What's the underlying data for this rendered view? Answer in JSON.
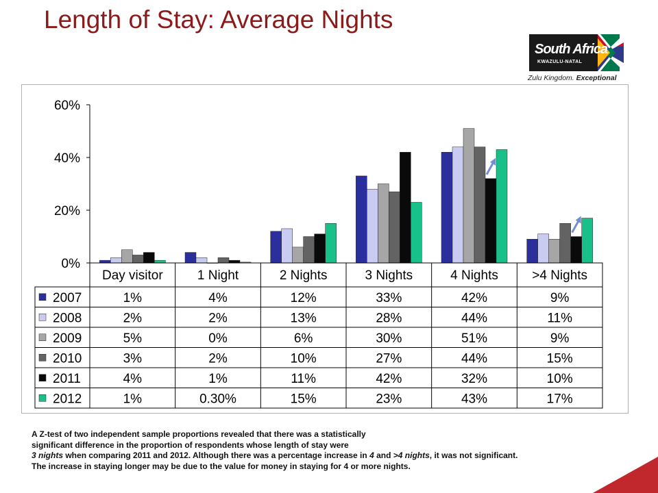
{
  "slide": {
    "title": "Length of Stay: Average Nights"
  },
  "logo": {
    "name": "South Africa",
    "region": "KWAZULU-NATAL",
    "tagline_a": "Zulu Kingdom. ",
    "tagline_b": "Exceptional"
  },
  "chart_data": {
    "type": "bar",
    "categories": [
      "Day visitor",
      "1 Night",
      "2 Nights",
      "3 Nights",
      "4 Nights",
      ">4 Nights"
    ],
    "series": [
      {
        "name": "2007",
        "color": "#2b2f9e",
        "values": [
          1,
          4,
          12,
          33,
          42,
          9
        ],
        "labels": [
          "1%",
          "4%",
          "12%",
          "33%",
          "42%",
          "9%"
        ]
      },
      {
        "name": "2008",
        "color": "#c9ccf0",
        "values": [
          2,
          2,
          13,
          28,
          44,
          11
        ],
        "labels": [
          "2%",
          "2%",
          "13%",
          "28%",
          "44%",
          "11%"
        ]
      },
      {
        "name": "2009",
        "color": "#a6a6a6",
        "values": [
          5,
          0,
          6,
          30,
          51,
          9
        ],
        "labels": [
          "5%",
          "0%",
          "6%",
          "30%",
          "51%",
          "9%"
        ]
      },
      {
        "name": "2010",
        "color": "#636363",
        "values": [
          3,
          2,
          10,
          27,
          44,
          15
        ],
        "labels": [
          "3%",
          "2%",
          "10%",
          "27%",
          "44%",
          "15%"
        ]
      },
      {
        "name": "2011",
        "color": "#0a0a0a",
        "values": [
          4,
          1,
          11,
          42,
          32,
          10
        ],
        "labels": [
          "4%",
          "1%",
          "11%",
          "42%",
          "32%",
          "10%"
        ]
      },
      {
        "name": "2012",
        "color": "#19c08a",
        "values": [
          1,
          0.3,
          15,
          23,
          43,
          17
        ],
        "labels": [
          "1%",
          "0.30%",
          "15%",
          "23%",
          "43%",
          "17%"
        ]
      }
    ],
    "ylim": [
      0,
      60
    ],
    "yticks": [
      0,
      20,
      40,
      60
    ],
    "ytick_labels": [
      "0%",
      "20%",
      "40%",
      "60%"
    ],
    "grid": false,
    "data_table": true,
    "annotations": [
      {
        "type": "increase-arrow",
        "category": "4 Nights"
      },
      {
        "type": "increase-arrow",
        "category": ">4 Nights"
      }
    ]
  },
  "footnote": {
    "line1": "A Z-test of two independent sample proportions revealed that there was a statistically",
    "line2": "significant difference in the  proportion of respondents whose length of stay were",
    "line3_a": "3 nights",
    "line3_b": " when comparing 2011 and 2012. Although there was a percentage increase in ",
    "line3_c": "4",
    "line3_d": " and ",
    "line3_e": ">4 nights",
    "line3_f": ", it was not significant.",
    "line4": "The increase in staying longer may be due to the value for money in staying for 4 or more nights."
  }
}
